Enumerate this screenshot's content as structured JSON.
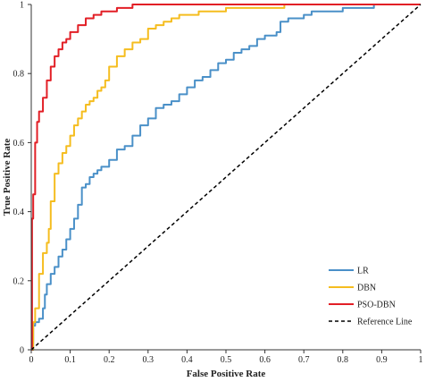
{
  "chart_data": {
    "type": "line",
    "title": "",
    "xlabel": "False Positive Rate",
    "ylabel": "True Positive Rate",
    "xlim": [
      0,
      1
    ],
    "ylim": [
      0,
      1
    ],
    "grid": false,
    "legend_position": "bottom-right",
    "x_ticks": [
      "0",
      "0.1",
      "0.2",
      "0.3",
      "0.4",
      "0.5",
      "0.6",
      "0.7",
      "0.8",
      "0.9",
      "1"
    ],
    "y_ticks": [
      "0",
      "0.2",
      "0.4",
      "0.6",
      "0.8",
      "1"
    ],
    "series": [
      {
        "name": "LR",
        "color": "#4a90c8",
        "style": "solid",
        "x": [
          0,
          0.005,
          0.01,
          0.02,
          0.03,
          0.035,
          0.04,
          0.05,
          0.06,
          0.07,
          0.08,
          0.09,
          0.1,
          0.11,
          0.12,
          0.13,
          0.14,
          0.15,
          0.16,
          0.17,
          0.18,
          0.2,
          0.22,
          0.24,
          0.26,
          0.28,
          0.3,
          0.32,
          0.34,
          0.36,
          0.38,
          0.4,
          0.42,
          0.44,
          0.46,
          0.48,
          0.5,
          0.52,
          0.54,
          0.56,
          0.58,
          0.6,
          0.62,
          0.63,
          0.64,
          0.66,
          0.68,
          0.7,
          0.72,
          0.75,
          0.78,
          0.8,
          0.84,
          0.88,
          0.9,
          0.95,
          1.0
        ],
        "y": [
          0,
          0.07,
          0.08,
          0.09,
          0.12,
          0.16,
          0.19,
          0.22,
          0.24,
          0.27,
          0.29,
          0.32,
          0.35,
          0.38,
          0.42,
          0.47,
          0.48,
          0.5,
          0.51,
          0.52,
          0.53,
          0.55,
          0.58,
          0.59,
          0.62,
          0.65,
          0.67,
          0.7,
          0.71,
          0.72,
          0.74,
          0.76,
          0.78,
          0.79,
          0.81,
          0.83,
          0.84,
          0.86,
          0.87,
          0.88,
          0.9,
          0.91,
          0.91,
          0.92,
          0.95,
          0.96,
          0.96,
          0.97,
          0.98,
          0.98,
          0.98,
          0.99,
          0.99,
          1.0,
          1.0,
          1.0,
          1.0
        ]
      },
      {
        "name": "DBN",
        "color": "#f5bd1f",
        "style": "solid",
        "x": [
          0,
          0.005,
          0.01,
          0.02,
          0.03,
          0.04,
          0.045,
          0.05,
          0.06,
          0.07,
          0.08,
          0.09,
          0.1,
          0.11,
          0.12,
          0.13,
          0.14,
          0.15,
          0.16,
          0.17,
          0.18,
          0.19,
          0.2,
          0.22,
          0.24,
          0.26,
          0.28,
          0.3,
          0.32,
          0.34,
          0.36,
          0.38,
          0.4,
          0.43,
          0.46,
          0.5,
          0.55,
          0.6,
          0.65,
          0.7,
          0.8,
          0.9,
          1.0
        ],
        "y": [
          0,
          0.08,
          0.12,
          0.22,
          0.28,
          0.31,
          0.35,
          0.43,
          0.51,
          0.54,
          0.57,
          0.59,
          0.62,
          0.65,
          0.67,
          0.69,
          0.71,
          0.72,
          0.73,
          0.75,
          0.76,
          0.78,
          0.82,
          0.85,
          0.87,
          0.89,
          0.9,
          0.93,
          0.94,
          0.95,
          0.96,
          0.97,
          0.97,
          0.98,
          0.98,
          0.99,
          0.99,
          0.99,
          1.0,
          1.0,
          1.0,
          1.0,
          1.0
        ]
      },
      {
        "name": "PSO-DBN",
        "color": "#e21f26",
        "style": "solid",
        "x": [
          0,
          0.002,
          0.005,
          0.01,
          0.015,
          0.02,
          0.03,
          0.04,
          0.05,
          0.06,
          0.07,
          0.08,
          0.09,
          0.1,
          0.12,
          0.14,
          0.16,
          0.18,
          0.2,
          0.22,
          0.24,
          0.26,
          0.3,
          0.4,
          0.5,
          0.6,
          0.7,
          0.8,
          0.9,
          1.0
        ],
        "y": [
          0,
          0.38,
          0.45,
          0.6,
          0.66,
          0.69,
          0.73,
          0.78,
          0.82,
          0.85,
          0.87,
          0.89,
          0.9,
          0.92,
          0.94,
          0.96,
          0.97,
          0.98,
          0.98,
          0.99,
          0.99,
          1.0,
          1.0,
          1.0,
          1.0,
          1.0,
          1.0,
          1.0,
          1.0,
          1.0
        ]
      },
      {
        "name": "Reference Line",
        "color": "#000000",
        "style": "dashed",
        "x": [
          0,
          1
        ],
        "y": [
          0,
          1
        ]
      }
    ]
  }
}
